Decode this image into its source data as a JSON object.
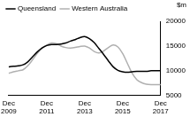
{
  "chart_data": {
    "type": "line",
    "ylabel": "$m",
    "categories": [
      "Dec 2009",
      null,
      null,
      null,
      null,
      null,
      null,
      null,
      "Dec 2011",
      null,
      null,
      null,
      null,
      null,
      null,
      null,
      "Dec 2013",
      null,
      null,
      null,
      null,
      null,
      null,
      null,
      "Dec 2015",
      null,
      null,
      null,
      null,
      null,
      null,
      null,
      "Dec 2017"
    ],
    "series": [
      {
        "name": "Queensland",
        "color": "#000000",
        "values": [
          10800,
          10900,
          11000,
          11200,
          11800,
          12800,
          13800,
          14600,
          15100,
          15300,
          15300,
          15400,
          15600,
          16000,
          16300,
          16700,
          16900,
          16500,
          15700,
          14500,
          13300,
          12000,
          10800,
          10100,
          9800,
          9700,
          9800,
          9900,
          9900,
          9900,
          10000,
          10000,
          10000
        ]
      },
      {
        "name": "Western Australia",
        "color": "#b0b0b0",
        "values": [
          9500,
          9800,
          10000,
          10200,
          11000,
          12200,
          13500,
          14500,
          15200,
          15600,
          15500,
          15000,
          14700,
          14600,
          14700,
          14900,
          15000,
          14600,
          13900,
          13600,
          14000,
          14700,
          15200,
          14800,
          13500,
          11500,
          9500,
          8200,
          7600,
          7300,
          7200,
          7200,
          7200
        ]
      }
    ],
    "ylim": [
      5000,
      20000
    ],
    "yticks": [
      5000,
      10000,
      15000,
      20000
    ],
    "grid": false,
    "legend": "upper left"
  }
}
